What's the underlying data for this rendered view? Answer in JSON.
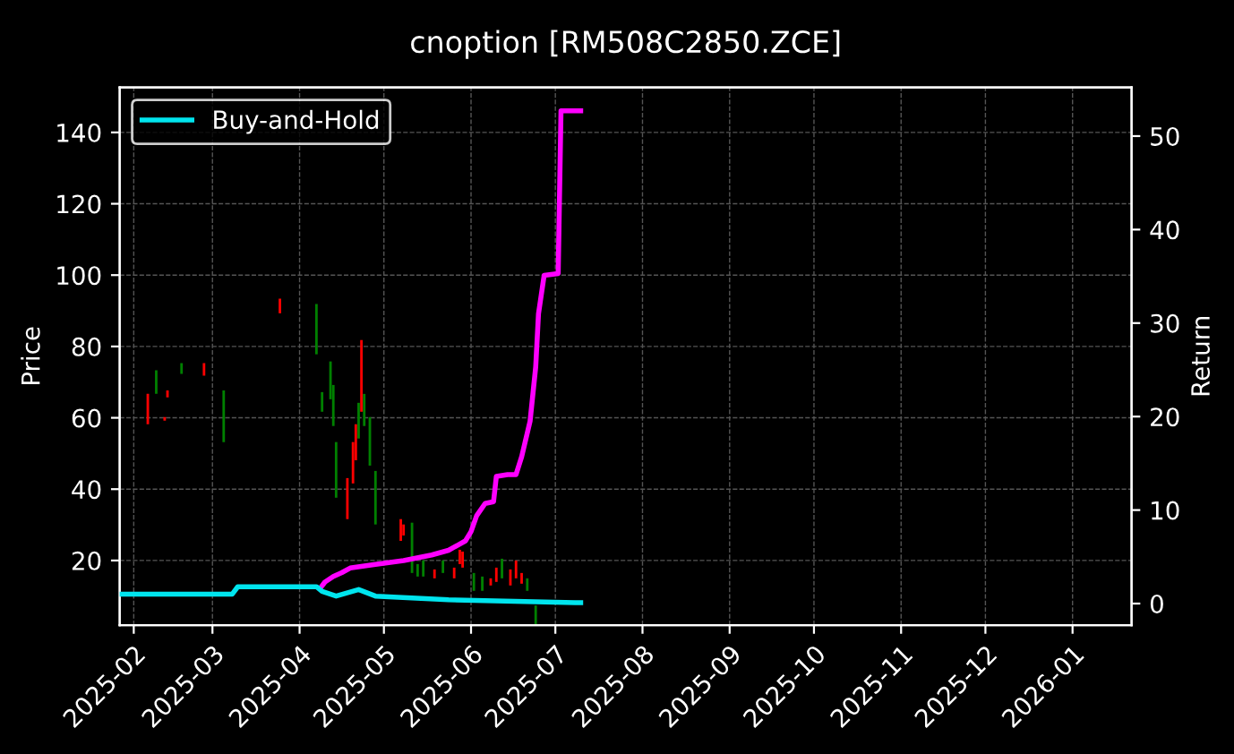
{
  "chart_data": {
    "type": "candlestick",
    "title": "cnoption [RM508C2850.ZCE]",
    "ylabel": "Price",
    "y2label": "Return",
    "x": [
      "2025-02-06",
      "2025-02-09",
      "2025-02-12",
      "2025-02-13",
      "2025-02-18",
      "2025-02-26",
      "2025-03-05",
      "2025-03-25",
      "2025-04-07",
      "2025-04-09",
      "2025-04-12",
      "2025-04-13",
      "2025-04-14",
      "2025-04-18",
      "2025-04-20",
      "2025-04-21",
      "2025-04-22",
      "2025-04-23",
      "2025-04-24",
      "2025-04-26",
      "2025-04-28",
      "2025-05-07",
      "2025-05-08",
      "2025-05-11",
      "2025-05-13",
      "2025-05-15",
      "2025-05-19",
      "2025-05-22",
      "2025-05-26",
      "2025-05-28",
      "2025-05-29",
      "2025-06-02",
      "2025-06-05",
      "2025-06-08",
      "2025-06-10",
      "2025-06-12",
      "2025-06-15",
      "2025-06-17",
      "2025-06-19",
      "2025-06-21",
      "2025-06-24"
    ],
    "ohlc": [
      [
        66.7,
        66.7,
        58.2,
        58.2
      ],
      [
        66.7,
        73.3,
        66.7,
        73.3
      ],
      [
        60.2,
        60.2,
        59.2,
        59.2
      ],
      [
        67.7,
        67.7,
        65.7,
        65.7
      ],
      [
        72.3,
        75.3,
        72.3,
        75.3
      ],
      [
        75.3,
        75.3,
        71.8,
        71.8
      ],
      [
        53.2,
        67.7,
        53.2,
        67.7
      ],
      [
        93.4,
        93.4,
        89.3,
        89.3
      ],
      [
        77.8,
        91.9,
        77.8,
        91.9
      ],
      [
        61.7,
        67.2,
        61.7,
        67.2
      ],
      [
        65.2,
        75.8,
        65.2,
        75.8
      ],
      [
        57.7,
        69.2,
        57.7,
        69.2
      ],
      [
        37.6,
        53.2,
        37.6,
        53.2
      ],
      [
        43.1,
        43.1,
        31.6,
        31.6
      ],
      [
        53.2,
        53.2,
        41.6,
        41.6
      ],
      [
        58.2,
        58.2,
        48.1,
        48.1
      ],
      [
        54.2,
        64.2,
        54.2,
        64.2
      ],
      [
        81.8,
        81.8,
        61.7,
        61.7
      ],
      [
        57.7,
        66.7,
        57.7,
        66.7
      ],
      [
        46.6,
        60.2,
        46.6,
        60.2
      ],
      [
        30.1,
        45.1,
        30.1,
        45.1
      ],
      [
        31.6,
        31.6,
        25.5,
        25.5
      ],
      [
        30.1,
        30.1,
        27,
        27
      ],
      [
        16.5,
        30.6,
        16.5,
        30.6
      ],
      [
        15.5,
        19,
        15.5,
        19
      ],
      [
        15.5,
        20,
        15.5,
        20
      ],
      [
        17.5,
        17.5,
        15,
        15
      ],
      [
        16.5,
        20,
        16.5,
        20
      ],
      [
        18,
        18,
        15,
        15
      ],
      [
        23,
        23,
        19,
        19
      ],
      [
        22.5,
        22.5,
        18,
        18
      ],
      [
        11.5,
        16.5,
        11.5,
        16.5
      ],
      [
        11.5,
        15.5,
        11.5,
        15.5
      ],
      [
        15,
        15,
        13,
        13
      ],
      [
        18,
        18,
        14,
        14
      ],
      [
        15,
        20.5,
        15,
        20.5
      ],
      [
        17.5,
        17.5,
        13,
        13
      ],
      [
        20,
        20,
        15,
        15
      ],
      [
        16.5,
        16.5,
        13.5,
        13.5
      ],
      [
        11.5,
        15,
        11.5,
        15
      ],
      [
        2,
        7.4,
        2,
        7.4
      ]
    ],
    "colors": [
      "#ff0000",
      "#008000",
      "#ff0000",
      "#ff0000",
      "#008000",
      "#ff0000",
      "#008000",
      "#ff0000",
      "#008000",
      "#008000",
      "#008000",
      "#008000",
      "#008000",
      "#ff0000",
      "#ff0000",
      "#ff0000",
      "#008000",
      "#ff0000",
      "#008000",
      "#008000",
      "#008000",
      "#ff0000",
      "#ff0000",
      "#008000",
      "#008000",
      "#008000",
      "#ff0000",
      "#008000",
      "#ff0000",
      "#ff0000",
      "#ff0000",
      "#008000",
      "#008000",
      "#ff0000",
      "#ff0000",
      "#008000",
      "#ff0000",
      "#ff0000",
      "#ff0000",
      "#008000",
      "#008000"
    ],
    "series": [
      {
        "type": "line",
        "axis": "y2",
        "color": "#ff00ff",
        "x": [
          "2025-04-09",
          "2025-04-10",
          "2025-04-13",
          "2025-04-16",
          "2025-04-19",
          "2025-04-28",
          "2025-05-08",
          "2025-05-18",
          "2025-05-24",
          "2025-05-30",
          "2025-06-01",
          "2025-06-03",
          "2025-06-06",
          "2025-06-09",
          "2025-06-10",
          "2025-06-14",
          "2025-06-17",
          "2025-06-19",
          "2025-06-22",
          "2025-06-24",
          "2025-06-25",
          "2025-06-27",
          "2025-07-02",
          "2025-07-03",
          "2025-07-10"
        ],
        "values": [
          1.9,
          2.3,
          2.9,
          3.3,
          3.8,
          4.2,
          4.6,
          5.2,
          5.7,
          6.7,
          7.7,
          9.4,
          10.7,
          10.9,
          13.6,
          13.8,
          13.8,
          15.7,
          19.5,
          25.3,
          31,
          35.1,
          35.3,
          52.7,
          52.7
        ]
      },
      {
        "type": "line",
        "axis": "y2",
        "name": "Buy-and-Hold",
        "color": "#00e5ee",
        "x": [
          "2025-01-27",
          "2025-03-08",
          "2025-03-10",
          "2025-04-07",
          "2025-04-09",
          "2025-04-14",
          "2025-04-22",
          "2025-04-28",
          "2025-05-24",
          "2025-07-08",
          "2025-07-10"
        ],
        "values": [
          1.0,
          1.0,
          1.8,
          1.8,
          1.3,
          0.8,
          1.5,
          0.8,
          0.4,
          0.1,
          0.1
        ]
      }
    ],
    "xlim": [
      "2025-01-27",
      "2026-01-22"
    ],
    "xticks": [
      {
        "value": "2025-02-01",
        "label": "2025-02"
      },
      {
        "value": "2025-03-01",
        "label": "2025-03"
      },
      {
        "value": "2025-04-01",
        "label": "2025-04"
      },
      {
        "value": "2025-05-01",
        "label": "2025-05"
      },
      {
        "value": "2025-06-01",
        "label": "2025-06"
      },
      {
        "value": "2025-07-01",
        "label": "2025-07"
      },
      {
        "value": "2025-08-01",
        "label": "2025-08"
      },
      {
        "value": "2025-09-01",
        "label": "2025-09"
      },
      {
        "value": "2025-10-01",
        "label": "2025-10"
      },
      {
        "value": "2025-11-01",
        "label": "2025-11"
      },
      {
        "value": "2025-12-01",
        "label": "2025-12"
      },
      {
        "value": "2026-01-01",
        "label": "2026-01"
      }
    ],
    "ylim": [
      1.9,
      152.6
    ],
    "yticks": [
      20,
      40,
      60,
      80,
      100,
      120,
      140
    ],
    "y2lim": [
      -2.3,
      55.2
    ],
    "y2ticks": [
      0,
      10,
      20,
      30,
      40,
      50
    ],
    "grid": true,
    "legend": "top left"
  }
}
